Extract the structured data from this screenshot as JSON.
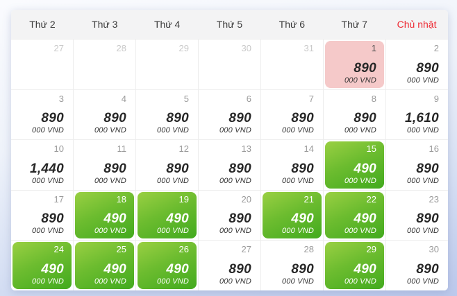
{
  "weekday_header": {
    "days": [
      {
        "label": "Thứ 2",
        "sunday": false
      },
      {
        "label": "Thứ 3",
        "sunday": false
      },
      {
        "label": "Thứ 4",
        "sunday": false
      },
      {
        "label": "Thứ 5",
        "sunday": false
      },
      {
        "label": "Thứ 6",
        "sunday": false
      },
      {
        "label": "Thứ 7",
        "sunday": false
      },
      {
        "label": "Chủ nhật",
        "sunday": true
      }
    ]
  },
  "calendar": {
    "price_unit": "000 VND",
    "days": [
      {
        "date": "27",
        "price": null,
        "muted": true,
        "highlight": null
      },
      {
        "date": "28",
        "price": null,
        "muted": true,
        "highlight": null
      },
      {
        "date": "29",
        "price": null,
        "muted": true,
        "highlight": null
      },
      {
        "date": "30",
        "price": null,
        "muted": true,
        "highlight": null
      },
      {
        "date": "31",
        "price": null,
        "muted": true,
        "highlight": null
      },
      {
        "date": "1",
        "price": "890",
        "muted": false,
        "highlight": "pink"
      },
      {
        "date": "2",
        "price": "890",
        "muted": false,
        "highlight": null
      },
      {
        "date": "3",
        "price": "890",
        "muted": false,
        "highlight": null
      },
      {
        "date": "4",
        "price": "890",
        "muted": false,
        "highlight": null
      },
      {
        "date": "5",
        "price": "890",
        "muted": false,
        "highlight": null
      },
      {
        "date": "6",
        "price": "890",
        "muted": false,
        "highlight": null
      },
      {
        "date": "7",
        "price": "890",
        "muted": false,
        "highlight": null
      },
      {
        "date": "8",
        "price": "890",
        "muted": false,
        "highlight": null
      },
      {
        "date": "9",
        "price": "1,610",
        "muted": false,
        "highlight": null
      },
      {
        "date": "10",
        "price": "1,440",
        "muted": false,
        "highlight": null
      },
      {
        "date": "11",
        "price": "890",
        "muted": false,
        "highlight": null
      },
      {
        "date": "12",
        "price": "890",
        "muted": false,
        "highlight": null
      },
      {
        "date": "13",
        "price": "890",
        "muted": false,
        "highlight": null
      },
      {
        "date": "14",
        "price": "890",
        "muted": false,
        "highlight": null
      },
      {
        "date": "15",
        "price": "490",
        "muted": false,
        "highlight": "green"
      },
      {
        "date": "16",
        "price": "890",
        "muted": false,
        "highlight": null
      },
      {
        "date": "17",
        "price": "890",
        "muted": false,
        "highlight": null
      },
      {
        "date": "18",
        "price": "490",
        "muted": false,
        "highlight": "green"
      },
      {
        "date": "19",
        "price": "490",
        "muted": false,
        "highlight": "green"
      },
      {
        "date": "20",
        "price": "890",
        "muted": false,
        "highlight": null
      },
      {
        "date": "21",
        "price": "490",
        "muted": false,
        "highlight": "green"
      },
      {
        "date": "22",
        "price": "490",
        "muted": false,
        "highlight": "green"
      },
      {
        "date": "23",
        "price": "890",
        "muted": false,
        "highlight": null
      },
      {
        "date": "24",
        "price": "490",
        "muted": false,
        "highlight": "green"
      },
      {
        "date": "25",
        "price": "490",
        "muted": false,
        "highlight": "green"
      },
      {
        "date": "26",
        "price": "490",
        "muted": false,
        "highlight": "green"
      },
      {
        "date": "27",
        "price": "890",
        "muted": false,
        "highlight": null
      },
      {
        "date": "28",
        "price": "890",
        "muted": false,
        "highlight": null
      },
      {
        "date": "29",
        "price": "490",
        "muted": false,
        "highlight": "green"
      },
      {
        "date": "30",
        "price": "890",
        "muted": false,
        "highlight": null
      }
    ]
  },
  "colors": {
    "low_fare_green_start": "#9ad043",
    "low_fare_green_end": "#42aa1e",
    "selected_date_pink": "#f5c9c9",
    "sunday_red": "#ee2a33",
    "header_bg": "#f3f3f4",
    "grid_line": "#ededed",
    "price_text": "#272727",
    "date_text": "#9a9a9a"
  }
}
